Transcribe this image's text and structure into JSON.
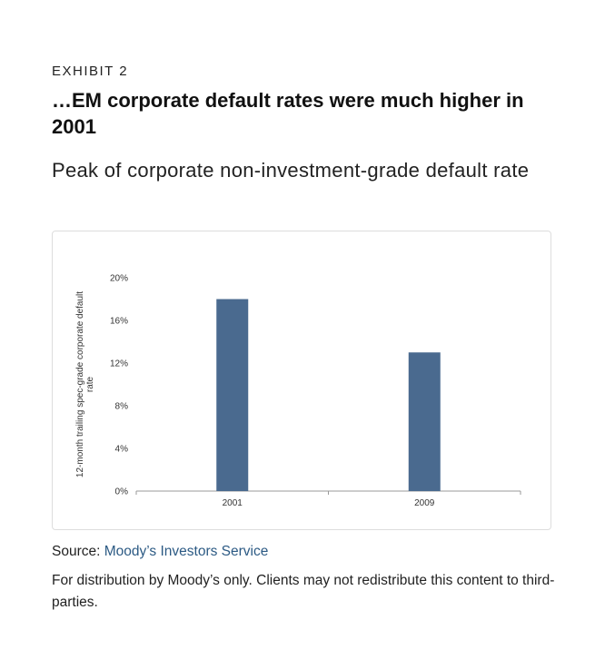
{
  "exhibit_label": "EXHIBIT 2",
  "title": "…EM corporate default rates were much higher in 2001",
  "subtitle": "Peak of corporate non-investment-grade default rate",
  "source": {
    "prefix": "Source: ",
    "link_text": "Moody’s Investors Service"
  },
  "disclaimer": "For distribution by Moody’s only. Clients may not redistribute this content to third-parties.",
  "colors": {
    "bar": "#4a6a8f",
    "axis": "#999999",
    "link": "#2c5a84"
  },
  "chart_data": {
    "type": "bar",
    "categories": [
      "2001",
      "2009"
    ],
    "values": [
      18,
      13
    ],
    "ylabel": "12-month trailing spec-grade corporate default rate",
    "ylim": [
      0,
      20
    ],
    "yticks": [
      0,
      4,
      8,
      12,
      16,
      20
    ],
    "ytick_format": "%",
    "grid": false,
    "legend": "none"
  }
}
